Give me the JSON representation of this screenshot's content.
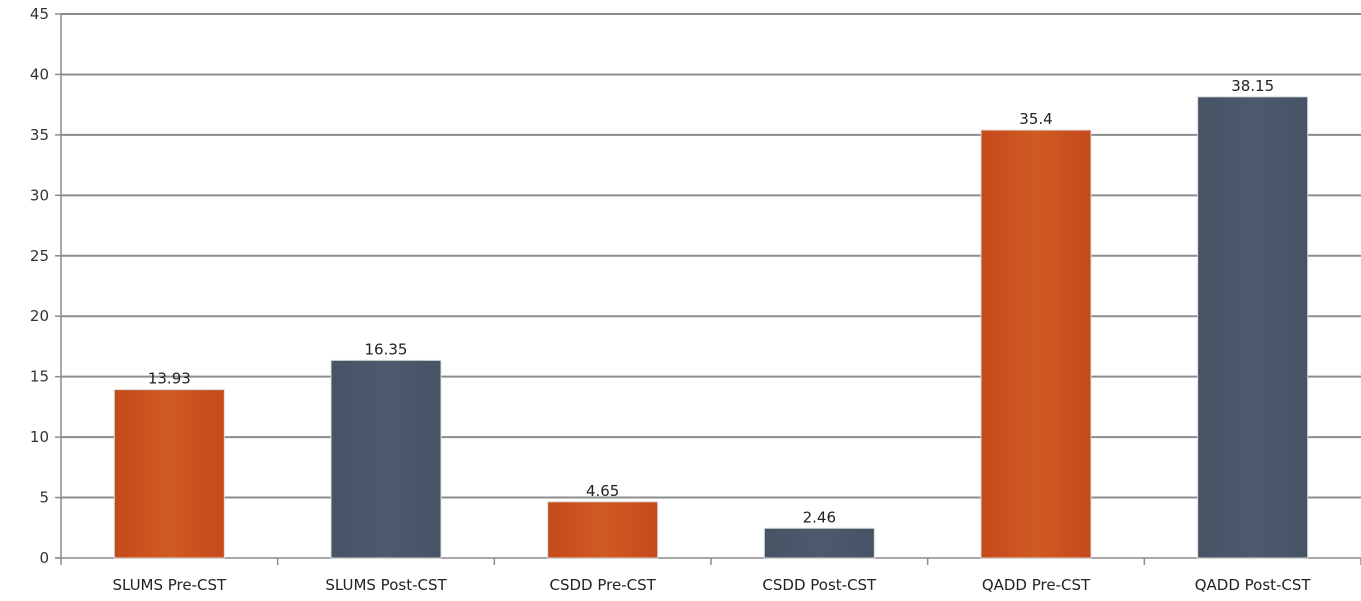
{
  "chart_data": {
    "type": "bar",
    "categories": [
      "SLUMS Pre-CST",
      "SLUMS Post-CST",
      "CSDD Pre-CST",
      "CSDD Post-CST",
      "QADD Pre-CST",
      "QADD Post-CST"
    ],
    "values": [
      13.93,
      16.35,
      4.65,
      2.46,
      35.4,
      38.15
    ],
    "value_labels": [
      "13.93",
      "16.35",
      "4.65",
      "2.46",
      "35.4",
      "38.15"
    ],
    "bar_colors": [
      "#c85120",
      "#4a576a",
      "#c85120",
      "#4a576a",
      "#c85120",
      "#4a576a"
    ],
    "ylim": [
      0,
      45
    ],
    "yticks": [
      0,
      5,
      10,
      15,
      20,
      25,
      30,
      35,
      40,
      45
    ],
    "title": "",
    "xlabel": "",
    "ylabel": "",
    "grid": true,
    "legend": "none"
  }
}
